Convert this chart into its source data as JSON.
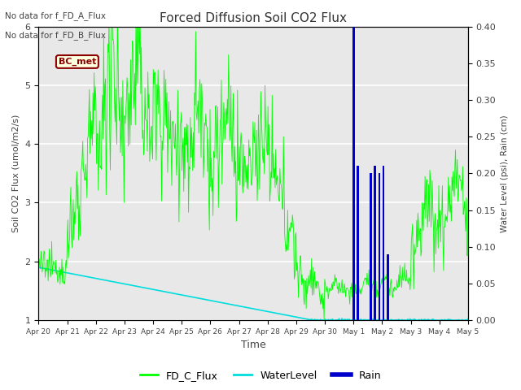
{
  "title": "Forced Diffusion Soil CO2 Flux",
  "xlabel": "Time",
  "ylabel_left": "Soil CO2 Flux (umol/m2/s)",
  "ylabel_right": "Water Level (psi), Rain (cm)",
  "ylim_left": [
    1.0,
    6.0
  ],
  "ylim_right": [
    0.0,
    0.4
  ],
  "no_data_text_1": "No data for f_FD_A_Flux",
  "no_data_text_2": "No data for f_FD_B_Flux",
  "bc_met_label": "BC_met",
  "legend_labels": [
    "FD_C_Flux",
    "WaterLevel",
    "Rain"
  ],
  "line_color_flux": "#00ff00",
  "line_color_water": "#00dddd",
  "line_color_rain": "#0000cc",
  "plot_bg": "#e8e8e8"
}
